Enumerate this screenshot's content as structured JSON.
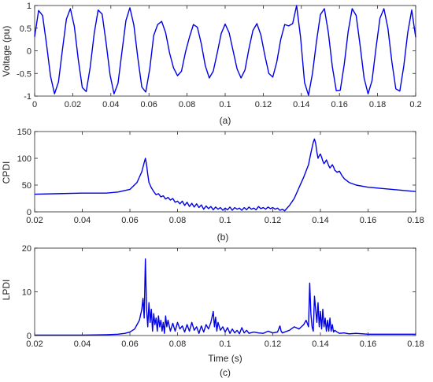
{
  "colors": {
    "series": "#0000e6",
    "axis": "#262626"
  },
  "chart_data": [
    {
      "id": "a",
      "type": "line",
      "caption": "(a)",
      "xlabel": "",
      "ylabel": "Voltage (pu)",
      "xlim": [
        0,
        0.2
      ],
      "ylim": [
        -1,
        1
      ],
      "xticks": [
        0,
        0.02,
        0.04,
        0.06,
        0.08,
        0.1,
        0.12,
        0.14,
        0.16,
        0.18,
        0.2
      ],
      "xtick_labels": [
        "0",
        "0.02",
        "0.04",
        "0.06",
        "0.08",
        "0.1",
        "0.12",
        "0.14",
        "0.16",
        "0.18",
        "0.2"
      ],
      "yticks": [
        -1,
        -0.5,
        0,
        0.5,
        1
      ],
      "ytick_labels": [
        "-1",
        "-0.5",
        "0",
        "0.5",
        "1"
      ],
      "grid": false,
      "series": [
        {
          "x": [
            0,
            0.00208,
            0.00417,
            0.00625,
            0.00833,
            0.01042,
            0.0125,
            0.01458,
            0.01667,
            0.01875,
            0.02083,
            0.02292,
            0.025,
            0.02708,
            0.02917,
            0.03125,
            0.03333,
            0.03542,
            0.0375,
            0.03958,
            0.04167,
            0.04375,
            0.04583,
            0.04792,
            0.05,
            0.05208,
            0.05417,
            0.05625,
            0.05833,
            0.06042,
            0.0625,
            0.06458,
            0.06667,
            0.06875,
            0.07083,
            0.07292,
            0.075,
            0.07708,
            0.07917,
            0.08125,
            0.08333,
            0.08542,
            0.0875,
            0.08958,
            0.09167,
            0.09375,
            0.09583,
            0.09792,
            0.1,
            0.10208,
            0.10417,
            0.10625,
            0.10833,
            0.11042,
            0.1125,
            0.11458,
            0.11667,
            0.11875,
            0.12083,
            0.12292,
            0.125,
            0.12708,
            0.12917,
            0.13125,
            0.13333,
            0.13542,
            0.1375,
            0.13958,
            0.14167,
            0.14375,
            0.14583,
            0.14792,
            0.15,
            0.15208,
            0.15417,
            0.15625,
            0.15833,
            0.16042,
            0.1625,
            0.16458,
            0.16667,
            0.16875,
            0.17083,
            0.17292,
            0.175,
            0.17708,
            0.17917,
            0.18125,
            0.18333,
            0.18542,
            0.1875,
            0.18958,
            0.19167,
            0.19375,
            0.19583,
            0.19792,
            0.2
          ],
          "y": [
            0.31,
            0.89,
            0.78,
            0.14,
            -0.56,
            -0.95,
            -0.69,
            0.02,
            0.7,
            0.93,
            0.54,
            -0.2,
            -0.81,
            -0.9,
            -0.36,
            0.38,
            0.9,
            0.81,
            0.18,
            -0.53,
            -0.95,
            -0.72,
            -0.02,
            0.67,
            0.95,
            0.57,
            -0.16,
            -0.8,
            -0.91,
            -0.4,
            0.34,
            0.58,
            0.65,
            0.4,
            -0.05,
            -0.38,
            -0.55,
            -0.45,
            -0.03,
            0.3,
            0.58,
            0.52,
            0.15,
            -0.33,
            -0.6,
            -0.45,
            -0.05,
            0.38,
            0.59,
            0.4,
            0.0,
            -0.4,
            -0.6,
            -0.42,
            0.05,
            0.45,
            0.6,
            0.35,
            -0.1,
            -0.5,
            -0.58,
            -0.25,
            0.25,
            0.58,
            0.55,
            0.6,
            1.0,
            0.3,
            -0.7,
            -0.98,
            -0.5,
            0.2,
            0.8,
            0.93,
            0.4,
            -0.35,
            -0.88,
            -0.87,
            -0.3,
            0.43,
            0.93,
            0.78,
            0.12,
            -0.6,
            -0.95,
            -0.66,
            0.06,
            0.72,
            0.93,
            0.5,
            -0.24,
            -0.84,
            -0.89,
            -0.34,
            0.4,
            0.9,
            0.3
          ]
        }
      ]
    },
    {
      "id": "b",
      "type": "line",
      "caption": "(b)",
      "xlabel": "",
      "ylabel": "CPDI",
      "xlim": [
        0.02,
        0.18
      ],
      "ylim": [
        0,
        150
      ],
      "xticks": [
        0.02,
        0.04,
        0.06,
        0.08,
        0.1,
        0.12,
        0.14,
        0.16,
        0.18
      ],
      "xtick_labels": [
        "0.02",
        "0.04",
        "0.06",
        "0.08",
        "0.1",
        "0.12",
        "0.14",
        "0.16",
        "0.18"
      ],
      "yticks": [
        0,
        50,
        100,
        150
      ],
      "ytick_labels": [
        "0",
        "50",
        "100",
        "150"
      ],
      "grid": false,
      "series": [
        {
          "x": [
            0.02,
            0.03,
            0.04,
            0.05,
            0.055,
            0.06,
            0.063,
            0.065,
            0.066,
            0.0665,
            0.067,
            0.0675,
            0.068,
            0.069,
            0.07,
            0.071,
            0.072,
            0.073,
            0.074,
            0.075,
            0.076,
            0.077,
            0.078,
            0.079,
            0.08,
            0.081,
            0.082,
            0.083,
            0.084,
            0.085,
            0.086,
            0.087,
            0.088,
            0.089,
            0.09,
            0.091,
            0.092,
            0.093,
            0.094,
            0.095,
            0.096,
            0.097,
            0.098,
            0.099,
            0.1,
            0.101,
            0.102,
            0.103,
            0.104,
            0.105,
            0.106,
            0.107,
            0.108,
            0.109,
            0.11,
            0.111,
            0.112,
            0.113,
            0.114,
            0.115,
            0.116,
            0.117,
            0.118,
            0.119,
            0.12,
            0.121,
            0.122,
            0.123,
            0.124,
            0.125,
            0.127,
            0.129,
            0.131,
            0.133,
            0.135,
            0.136,
            0.137,
            0.1375,
            0.138,
            0.1385,
            0.139,
            0.1395,
            0.14,
            0.1405,
            0.141,
            0.1415,
            0.142,
            0.1425,
            0.143,
            0.1435,
            0.144,
            0.1445,
            0.145,
            0.1455,
            0.146,
            0.147,
            0.148,
            0.1485,
            0.149,
            0.15,
            0.152,
            0.155,
            0.16,
            0.165,
            0.17,
            0.175,
            0.18
          ],
          "y": [
            33,
            34,
            35,
            35,
            37,
            42,
            55,
            75,
            92,
            100,
            88,
            70,
            55,
            45,
            38,
            32,
            34,
            28,
            30,
            24,
            27,
            22,
            25,
            18,
            20,
            15,
            20,
            12,
            18,
            10,
            16,
            9,
            15,
            8,
            13,
            5,
            11,
            6,
            10,
            4,
            9,
            5,
            8,
            3,
            7,
            4,
            9,
            3,
            8,
            5,
            7,
            3,
            8,
            4,
            9,
            5,
            7,
            4,
            10,
            6,
            8,
            5,
            9,
            6,
            8,
            5,
            7,
            3,
            5,
            2,
            12,
            25,
            45,
            65,
            88,
            110,
            130,
            136,
            128,
            112,
            100,
            105,
            108,
            102,
            95,
            90,
            93,
            97,
            92,
            86,
            82,
            85,
            88,
            84,
            78,
            74,
            76,
            72,
            68,
            62,
            55,
            50,
            46,
            44,
            42,
            40,
            38
          ]
        }
      ]
    },
    {
      "id": "c",
      "type": "line",
      "caption": "(c)",
      "xlabel": "Time (s)",
      "ylabel": "LPDI",
      "xlim": [
        0.02,
        0.18
      ],
      "ylim": [
        0,
        20
      ],
      "xticks": [
        0.02,
        0.04,
        0.06,
        0.08,
        0.1,
        0.12,
        0.14,
        0.16,
        0.18
      ],
      "xtick_labels": [
        "0.02",
        "0.04",
        "0.06",
        "0.08",
        "0.1",
        "0.12",
        "0.14",
        "0.16",
        "0.18"
      ],
      "yticks": [
        0,
        10,
        20
      ],
      "ytick_labels": [
        "0",
        "10",
        "20"
      ],
      "grid": false,
      "series": [
        {
          "x": [
            0.02,
            0.03,
            0.04,
            0.05,
            0.055,
            0.058,
            0.06,
            0.062,
            0.063,
            0.064,
            0.065,
            0.0655,
            0.066,
            0.0665,
            0.067,
            0.0675,
            0.068,
            0.0685,
            0.069,
            0.0695,
            0.07,
            0.0705,
            0.071,
            0.0715,
            0.072,
            0.0725,
            0.073,
            0.0735,
            0.074,
            0.0745,
            0.075,
            0.0755,
            0.076,
            0.077,
            0.078,
            0.079,
            0.08,
            0.081,
            0.082,
            0.083,
            0.084,
            0.085,
            0.086,
            0.087,
            0.088,
            0.089,
            0.09,
            0.091,
            0.092,
            0.093,
            0.094,
            0.095,
            0.0955,
            0.096,
            0.0965,
            0.097,
            0.098,
            0.099,
            0.1,
            0.101,
            0.102,
            0.103,
            0.104,
            0.105,
            0.106,
            0.107,
            0.108,
            0.109,
            0.11,
            0.112,
            0.114,
            0.116,
            0.118,
            0.12,
            0.122,
            0.123,
            0.1235,
            0.124,
            0.125,
            0.127,
            0.129,
            0.131,
            0.133,
            0.134,
            0.135,
            0.1355,
            0.136,
            0.1365,
            0.137,
            0.1375,
            0.138,
            0.1385,
            0.139,
            0.1395,
            0.14,
            0.1405,
            0.141,
            0.1415,
            0.142,
            0.1425,
            0.143,
            0.1435,
            0.144,
            0.1445,
            0.145,
            0.1455,
            0.146,
            0.147,
            0.148,
            0.15,
            0.152,
            0.155,
            0.16,
            0.165,
            0.17,
            0.175,
            0.18
          ],
          "y": [
            0.1,
            0.1,
            0.1,
            0.2,
            0.3,
            0.5,
            0.8,
            1.5,
            2.5,
            3.5,
            6,
            8.5,
            4,
            17.5,
            6,
            2,
            7.5,
            3,
            6,
            1,
            5,
            2.5,
            4,
            1,
            4.5,
            2,
            3.5,
            1,
            3,
            0.5,
            4.5,
            2,
            3.5,
            1,
            2.8,
            1,
            3,
            1.5,
            2.2,
            0.8,
            2.5,
            1,
            3,
            1.2,
            2,
            0.5,
            2.2,
            0.8,
            2.5,
            1.5,
            3,
            5.5,
            2,
            4.2,
            1,
            3,
            1.2,
            2,
            0.8,
            1.8,
            0.5,
            1.5,
            0.6,
            1.2,
            0.4,
            1.8,
            0.6,
            1.2,
            0.5,
            0.8,
            0.6,
            0.5,
            1,
            0.6,
            0.8,
            2.2,
            1,
            0.6,
            0.8,
            1.2,
            2,
            1.5,
            2.5,
            3.5,
            2,
            12,
            5,
            2,
            1,
            9,
            6,
            3,
            7.5,
            2,
            5.5,
            1.5,
            6,
            2,
            4,
            1,
            3.5,
            1,
            4,
            1,
            2.5,
            0.8,
            1.2,
            0.8,
            0.5,
            0.6,
            0.4,
            0.5,
            0.3,
            0.3,
            0.3,
            0.3,
            0.3
          ]
        }
      ]
    }
  ]
}
